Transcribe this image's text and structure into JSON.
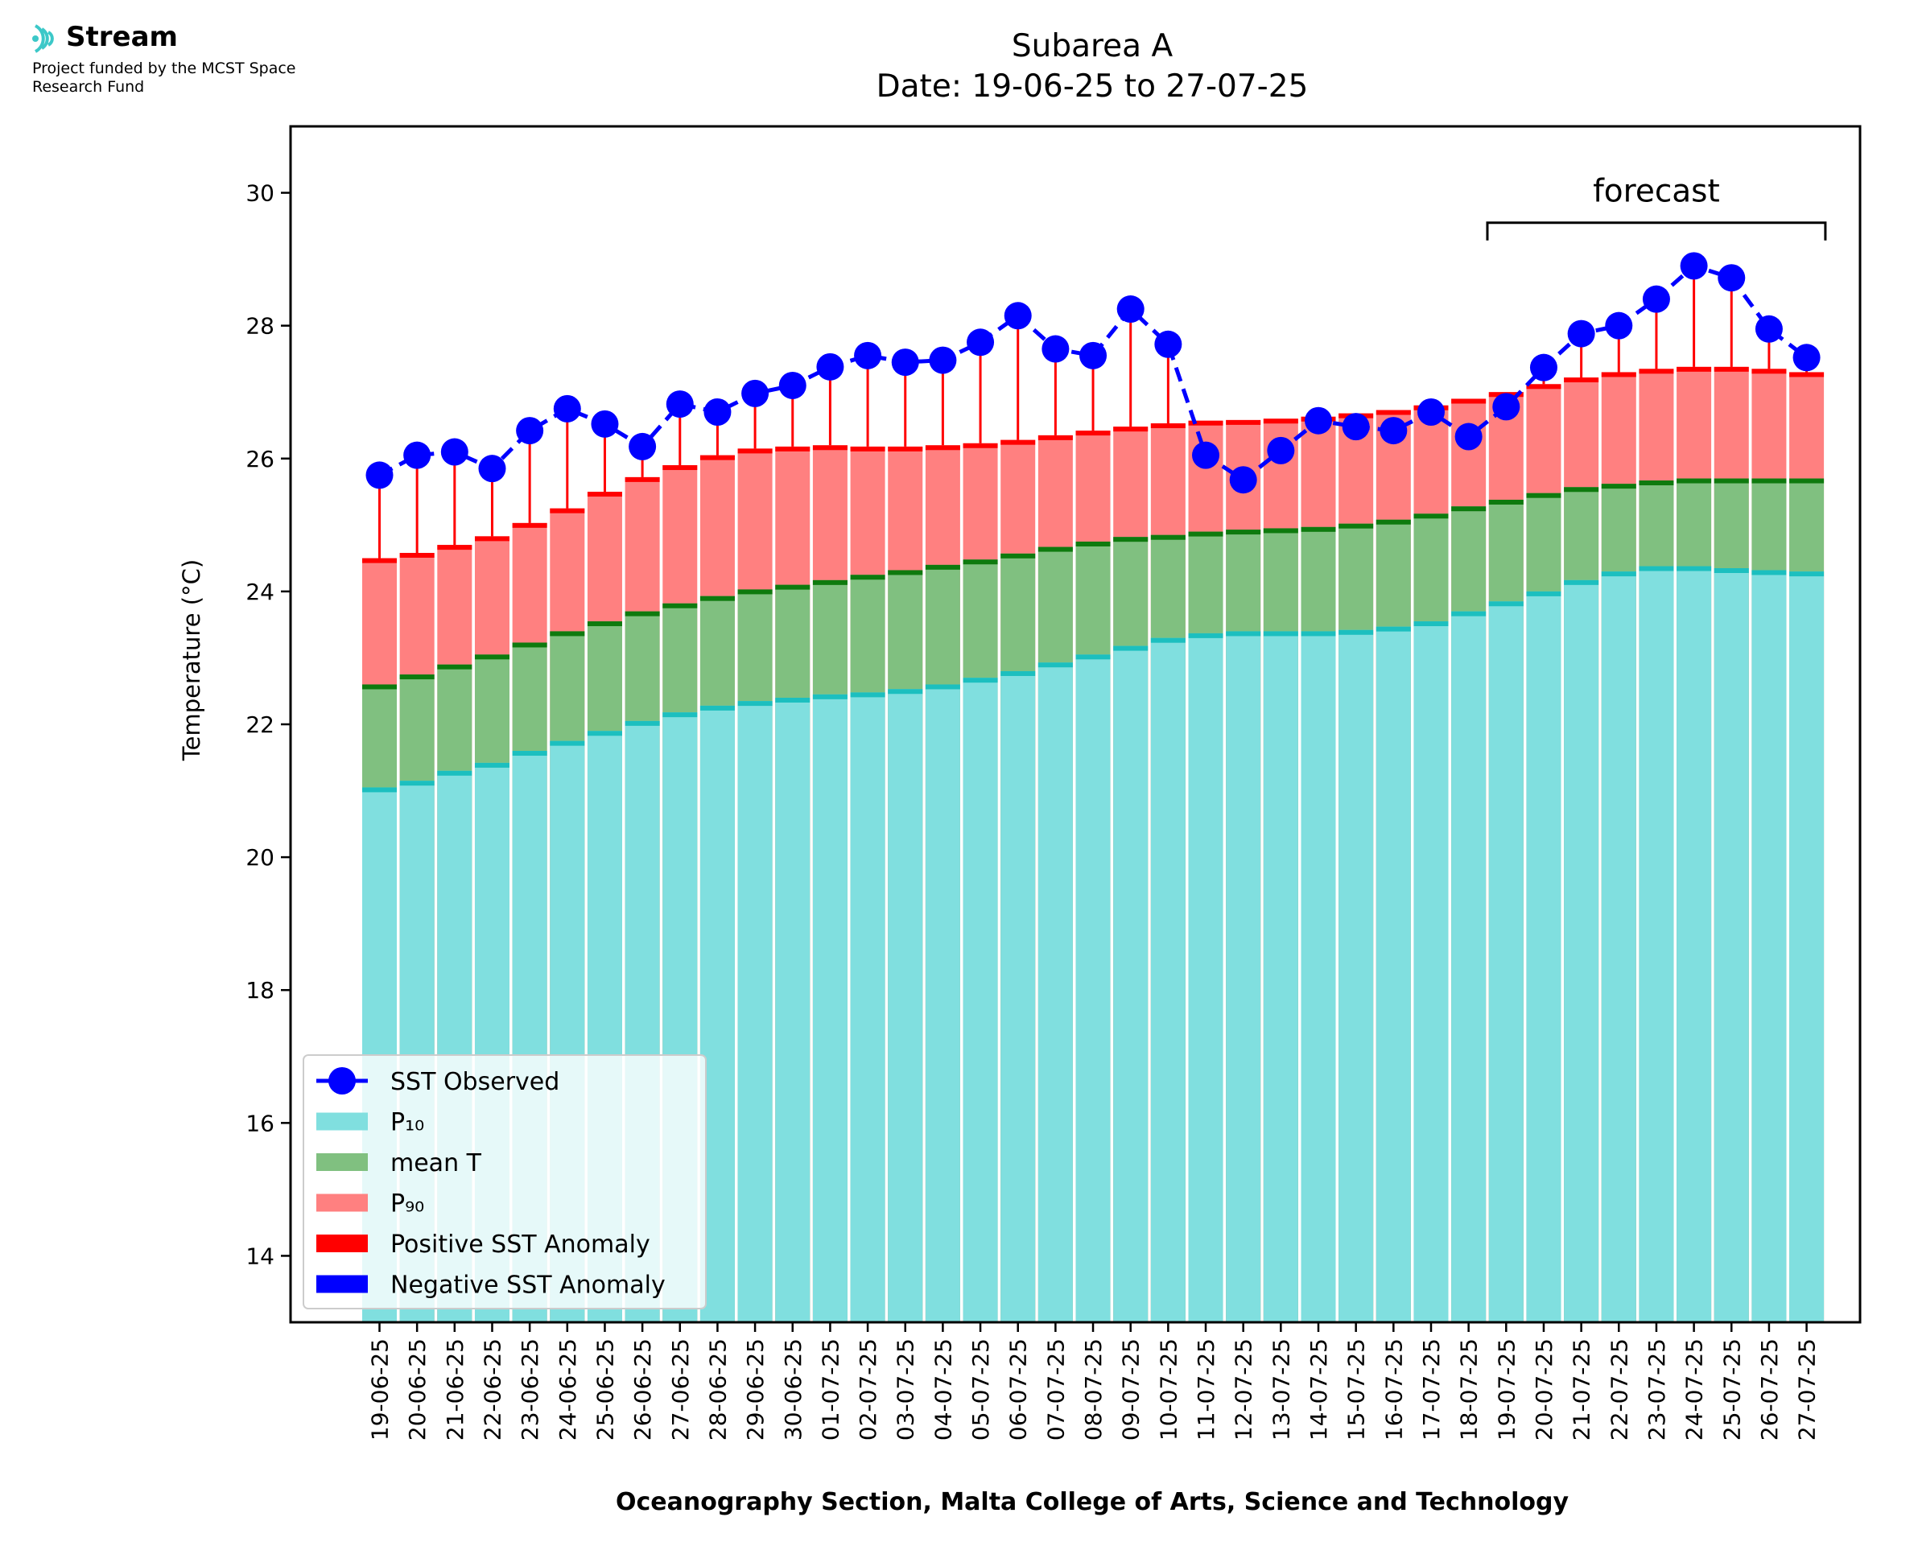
{
  "branding": {
    "name": "Stream",
    "funding_line": "Project funded by the MCST Space Research Fund",
    "icon": "stream-waves-icon"
  },
  "chart_data": {
    "type": "bar",
    "title": "Subarea A",
    "subtitle": "Date: 19-06-25 to 27-07-25",
    "xlabel": "Oceanography Section, Malta College of Arts, Science and Technology",
    "ylabel": "Temperature (°C)",
    "ylim": [
      13.0,
      31.0
    ],
    "yticks": [
      14,
      16,
      18,
      20,
      22,
      24,
      26,
      28,
      30
    ],
    "grid": false,
    "legend_position": "lower-left",
    "annotation": {
      "label": "forecast",
      "from": "19-07-25",
      "to": "27-07-25"
    },
    "categories": [
      "19-06-25",
      "20-06-25",
      "21-06-25",
      "22-06-25",
      "23-06-25",
      "24-06-25",
      "25-06-25",
      "26-06-25",
      "27-06-25",
      "28-06-25",
      "29-06-25",
      "30-06-25",
      "01-07-25",
      "02-07-25",
      "03-07-25",
      "04-07-25",
      "05-07-25",
      "06-07-25",
      "07-07-25",
      "08-07-25",
      "09-07-25",
      "10-07-25",
      "11-07-25",
      "12-07-25",
      "13-07-25",
      "14-07-25",
      "15-07-25",
      "16-07-25",
      "17-07-25",
      "18-07-25",
      "19-07-25",
      "20-07-25",
      "21-07-25",
      "22-07-25",
      "23-07-25",
      "24-07-25",
      "25-07-25",
      "26-07-25",
      "27-07-25"
    ],
    "series": [
      {
        "name": "SST Observed",
        "kind": "line",
        "color": "#0000ff",
        "values": [
          25.75,
          26.05,
          26.1,
          25.85,
          26.42,
          26.75,
          26.52,
          26.18,
          26.82,
          26.7,
          26.98,
          27.1,
          27.38,
          27.55,
          27.45,
          27.48,
          27.75,
          28.15,
          27.65,
          27.55,
          28.25,
          27.72,
          26.05,
          25.68,
          26.12,
          26.57,
          26.48,
          26.42,
          26.7,
          26.33,
          26.78,
          27.37,
          27.88,
          28.0,
          28.4,
          28.9,
          28.72,
          27.95,
          27.52
        ]
      },
      {
        "name": "P₁₀",
        "kind": "bar",
        "color": "#80dfdf",
        "edge_color": "#1cbfbf",
        "values": [
          21.05,
          21.15,
          21.3,
          21.42,
          21.6,
          21.75,
          21.9,
          22.05,
          22.18,
          22.28,
          22.35,
          22.4,
          22.45,
          22.48,
          22.53,
          22.6,
          22.7,
          22.8,
          22.93,
          23.05,
          23.18,
          23.3,
          23.37,
          23.4,
          23.4,
          23.4,
          23.42,
          23.47,
          23.55,
          23.7,
          23.85,
          24.0,
          24.17,
          24.3,
          24.38,
          24.38,
          24.35,
          24.32,
          24.3
        ]
      },
      {
        "name": "mean T",
        "kind": "bar",
        "color": "#80c080",
        "edge_color": "#0e7a0e",
        "values": [
          22.6,
          22.75,
          22.9,
          23.05,
          23.23,
          23.4,
          23.55,
          23.7,
          23.82,
          23.93,
          24.03,
          24.1,
          24.17,
          24.25,
          24.32,
          24.4,
          24.48,
          24.57,
          24.67,
          24.75,
          24.82,
          24.85,
          24.9,
          24.93,
          24.95,
          24.97,
          25.02,
          25.08,
          25.17,
          25.28,
          25.38,
          25.48,
          25.57,
          25.62,
          25.67,
          25.7,
          25.7,
          25.7,
          25.7
        ]
      },
      {
        "name": "P₉₀",
        "kind": "bar",
        "color": "#ff8080",
        "edge_color": "#ff0000",
        "values": [
          24.5,
          24.58,
          24.7,
          24.83,
          25.03,
          25.25,
          25.5,
          25.72,
          25.9,
          26.05,
          26.15,
          26.18,
          26.2,
          26.18,
          26.18,
          26.2,
          26.23,
          26.28,
          26.35,
          26.42,
          26.48,
          26.53,
          26.57,
          26.58,
          26.6,
          26.63,
          26.68,
          26.73,
          26.8,
          26.9,
          27.0,
          27.12,
          27.22,
          27.3,
          27.35,
          27.38,
          27.38,
          27.35,
          27.3
        ]
      }
    ],
    "legend": [
      {
        "label": "SST Observed",
        "symbol": "line-marker",
        "color": "#0000ff"
      },
      {
        "label": "P₁₀",
        "symbol": "patch",
        "color": "#80dfdf"
      },
      {
        "label": "mean T",
        "symbol": "patch",
        "color": "#80c080"
      },
      {
        "label": "P₉₀",
        "symbol": "patch",
        "color": "#ff8080"
      },
      {
        "label": "Positive SST Anomaly",
        "symbol": "patch",
        "color": "#ff0000"
      },
      {
        "label": "Negative SST Anomaly",
        "symbol": "patch",
        "color": "#0000ff"
      }
    ]
  }
}
